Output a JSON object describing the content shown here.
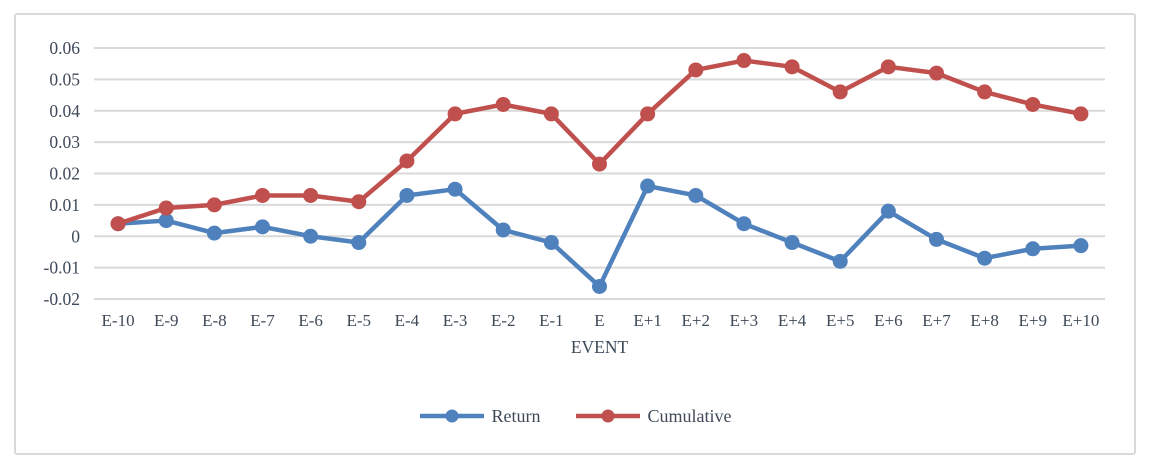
{
  "chart_data": {
    "type": "line",
    "title": "",
    "xlabel": "EVENT",
    "ylabel": "",
    "categories": [
      "E-10",
      "E-9",
      "E-8",
      "E-7",
      "E-6",
      "E-5",
      "E-4",
      "E-3",
      "E-2",
      "E-1",
      "E",
      "E+1",
      "E+2",
      "E+3",
      "E+4",
      "E+5",
      "E+6",
      "E+7",
      "E+8",
      "E+9",
      "E+10"
    ],
    "series": [
      {
        "name": "Return",
        "color": "#4F81BD",
        "values": [
          0.004,
          0.005,
          0.001,
          0.003,
          0.0,
          -0.002,
          0.013,
          0.015,
          0.002,
          -0.002,
          -0.016,
          0.016,
          0.013,
          0.004,
          -0.002,
          -0.008,
          0.008,
          -0.001,
          -0.007,
          -0.004,
          -0.003
        ]
      },
      {
        "name": "Cumulative",
        "color": "#C0504D",
        "values": [
          0.004,
          0.009,
          0.01,
          0.013,
          0.013,
          0.011,
          0.024,
          0.039,
          0.042,
          0.039,
          0.023,
          0.039,
          0.053,
          0.056,
          0.054,
          0.046,
          0.054,
          0.052,
          0.046,
          0.042,
          0.039
        ]
      }
    ],
    "ylim": [
      -0.02,
      0.06
    ],
    "ytick_step": 0.01,
    "ytick_labels": [
      "0.06",
      "0.05",
      "0.04",
      "0.03",
      "0.02",
      "0.01",
      "0",
      "-0.01",
      "-0.02"
    ],
    "grid": true,
    "legend_position": "bottom"
  },
  "style": {
    "gridline_color": "#D9D9D9",
    "border_color": "#D9D9D9",
    "text_color": "#3E4A59",
    "background": "#FFFFFF"
  }
}
